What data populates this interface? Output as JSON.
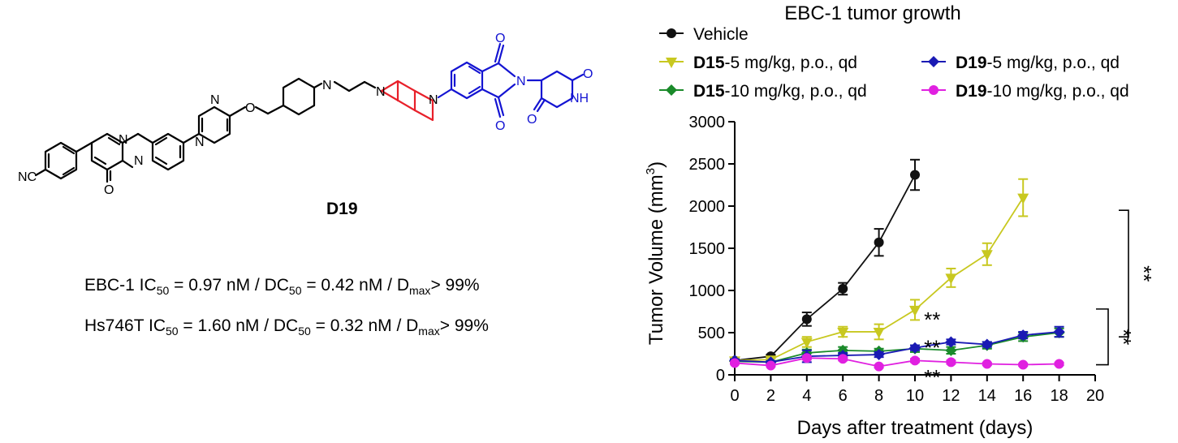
{
  "structure": {
    "compound_label": "D19",
    "atom_labels": [
      "NC",
      "N",
      "N",
      "O",
      "N",
      "N",
      "O",
      "N",
      "N",
      "N",
      "O",
      "O",
      "N",
      "O",
      "O",
      "NH"
    ],
    "colors": {
      "black": "#000000",
      "linker": "#e8202a",
      "ligand": "#1414d2"
    }
  },
  "potency": {
    "line1": {
      "pre": "EBC-1 IC",
      "s1": "50",
      "mid1": " = 0.97 nM / DC",
      "s2": "50",
      "mid2": " = 0.42 nM / D",
      "s3": "max",
      "post": "> 99%"
    },
    "line2": {
      "pre": "Hs746T IC",
      "s1": "50",
      "mid1": " = 1.60 nM / DC",
      "s2": "50",
      "mid2": " = 0.32 nM / D",
      "s3": "max",
      "post": "> 99%"
    }
  },
  "chart_data": {
    "type": "line",
    "title": "EBC-1 tumor growth",
    "xlabel": "Days after treatment (days)",
    "ylabel": "Tumor Volume (mm",
    "ylabel_sup": "3",
    "ylabel_end": ")",
    "xlim": [
      0,
      20
    ],
    "ylim": [
      0,
      3000
    ],
    "xticks": [
      "0",
      "2",
      "4",
      "6",
      "8",
      "10",
      "12",
      "14",
      "16",
      "18",
      "20"
    ],
    "yticks": [
      "0",
      "500",
      "1000",
      "1500",
      "2000",
      "2500",
      "3000"
    ],
    "legend_position": "top",
    "series": [
      {
        "name": "Vehicle",
        "name_bold": "",
        "name_rest": "Vehicle",
        "color": "#111111",
        "marker": "circle",
        "x": [
          0,
          2,
          4,
          6,
          8,
          10
        ],
        "y": [
          170,
          220,
          660,
          1020,
          1570,
          2370
        ],
        "err": [
          15,
          20,
          80,
          70,
          160,
          180
        ]
      },
      {
        "name": "D15-5 mg/kg, p.o., qd",
        "name_bold": "D15",
        "name_rest": "-5 mg/kg, p.o., qd",
        "color": "#c8c820",
        "marker": "triangle-down",
        "x": [
          0,
          2,
          4,
          6,
          8,
          10,
          12,
          14,
          16
        ],
        "y": [
          170,
          180,
          390,
          510,
          510,
          770,
          1150,
          1430,
          2100
        ],
        "err": [
          15,
          15,
          60,
          60,
          90,
          120,
          110,
          130,
          220
        ]
      },
      {
        "name": "D15-10 mg/kg, p.o., qd",
        "name_bold": "D15",
        "name_rest": "-10 mg/kg, p.o., qd",
        "color": "#1a8a2a",
        "marker": "diamond",
        "x": [
          0,
          2,
          4,
          6,
          8,
          10,
          12,
          14,
          16,
          18
        ],
        "y": [
          160,
          150,
          260,
          290,
          280,
          310,
          290,
          350,
          450,
          500
        ],
        "err": [
          15,
          15,
          40,
          40,
          30,
          40,
          40,
          40,
          50,
          50
        ]
      },
      {
        "name": "D19-5 mg/kg, p.o., qd",
        "name_bold": "D19",
        "name_rest": "-5 mg/kg, p.o., qd",
        "color": "#1a1ab4",
        "marker": "diamond",
        "x": [
          0,
          2,
          4,
          6,
          8,
          10,
          12,
          14,
          16,
          18
        ],
        "y": [
          170,
          150,
          220,
          230,
          240,
          320,
          390,
          360,
          470,
          510
        ],
        "err": [
          15,
          15,
          70,
          30,
          30,
          30,
          30,
          30,
          40,
          60
        ]
      },
      {
        "name": "D19-10 mg/kg, p.o., qd",
        "name_bold": "D19",
        "name_rest": "-10 mg/kg, p.o., qd",
        "color": "#e020e0",
        "marker": "circle",
        "x": [
          0,
          2,
          4,
          6,
          8,
          10,
          12,
          14,
          16,
          18
        ],
        "y": [
          140,
          110,
          200,
          190,
          100,
          170,
          150,
          130,
          120,
          130
        ],
        "err": [
          10,
          10,
          20,
          20,
          15,
          20,
          20,
          15,
          15,
          15
        ]
      }
    ],
    "annotations": [
      {
        "text": "**",
        "x": 10.5,
        "y": 700
      },
      {
        "text": "**",
        "x": 10.5,
        "y": 370
      },
      {
        "text": "**",
        "x": 10.5,
        "y": 20
      }
    ],
    "brackets": [
      {
        "text": "**",
        "y_top": 1950,
        "y_bottom": 450
      },
      {
        "text": "**",
        "y_top": 780,
        "y_bottom": 120
      }
    ]
  }
}
